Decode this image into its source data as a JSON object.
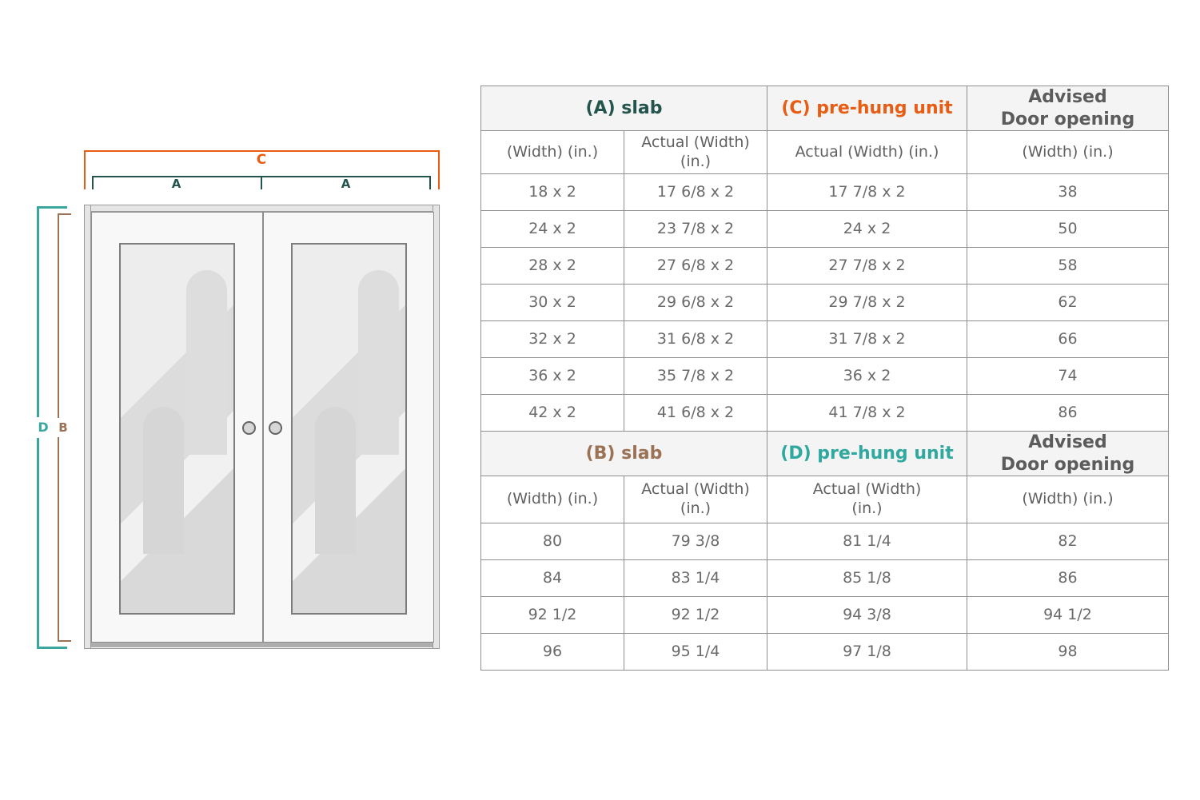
{
  "diagram": {
    "labels": {
      "c": "C",
      "a_left": "A",
      "a_right": "A",
      "d": "D",
      "b": "B"
    },
    "colors": {
      "orange": "#E85D13",
      "dark_teal": "#24544E",
      "light_teal": "#3BA69E",
      "brown": "#9C7257"
    }
  },
  "table": {
    "sections": [
      {
        "header": [
          {
            "text": "(A) slab",
            "color": "#24544E"
          },
          {
            "text": "(C) pre-hung unit",
            "color": "#E85D13"
          },
          {
            "text": "Advised\nDoor opening",
            "color": "#5c5c5c"
          }
        ],
        "col_headers": [
          "(Width) (in.)",
          "Actual (Width)\n(in.)",
          "Actual (Width) (in.)",
          "(Width) (in.)"
        ],
        "rows": [
          [
            "18 x 2",
            "17 6/8 x 2",
            "17 7/8 x 2",
            "38"
          ],
          [
            "24 x 2",
            "23 7/8 x 2",
            "24 x 2",
            "50"
          ],
          [
            "28 x 2",
            "27 6/8 x 2",
            "27 7/8 x 2",
            "58"
          ],
          [
            "30 x 2",
            "29 6/8 x 2",
            "29 7/8 x 2",
            "62"
          ],
          [
            "32 x 2",
            "31 6/8 x 2",
            "31 7/8 x 2",
            "66"
          ],
          [
            "36 x 2",
            "35 7/8 x 2",
            "36 x 2",
            "74"
          ],
          [
            "42 x 2",
            "41 6/8 x 2",
            "41 7/8 x 2",
            "86"
          ]
        ]
      },
      {
        "header": [
          {
            "text": "(B) slab",
            "color": "#9C7257"
          },
          {
            "text": "(D) pre-hung unit",
            "color": "#2FA8A0"
          },
          {
            "text": "Advised\nDoor opening",
            "color": "#5c5c5c"
          }
        ],
        "col_headers": [
          "(Width) (in.)",
          "Actual (Width)\n(in.)",
          "Actual (Width)\n(in.)",
          "(Width) (in.)"
        ],
        "rows": [
          [
            "80",
            "79 3/8",
            "81 1/4",
            "82"
          ],
          [
            "84",
            "83 1/4",
            "85 1/8",
            "86"
          ],
          [
            "92 1/2",
            "92 1/2",
            "94 3/8",
            "94 1/2"
          ],
          [
            "96",
            "95 1/4",
            "97 1/8",
            "98"
          ]
        ]
      }
    ]
  }
}
